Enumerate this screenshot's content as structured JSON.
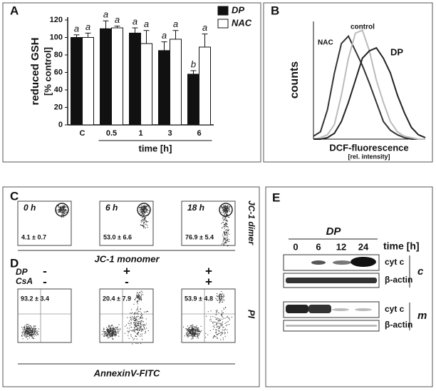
{
  "chart_data": [
    {
      "type": "bar",
      "panel": "A",
      "ylabel": [
        "reduced GSH",
        "[% control]"
      ],
      "xlabel": "time [h]",
      "categories": [
        "C",
        "0.5",
        "1",
        "3",
        "6"
      ],
      "series": [
        {
          "name": "DP",
          "color": "#111111",
          "values": [
            100,
            110,
            105,
            85,
            58
          ],
          "errors": [
            3,
            9,
            6,
            10,
            4
          ],
          "letters": [
            "a",
            "a",
            "a",
            "a",
            "b"
          ]
        },
        {
          "name": "NAC",
          "color": "#ffffff",
          "values": [
            100,
            111,
            93,
            98,
            89
          ],
          "errors": [
            5,
            2,
            15,
            10,
            15
          ],
          "letters": [
            "a",
            "a",
            "a",
            "a",
            "a"
          ]
        }
      ],
      "ylim": [
        0,
        120
      ],
      "yticks": [
        0,
        20,
        40,
        60,
        80,
        100,
        120
      ]
    },
    {
      "type": "line",
      "panel": "B",
      "ylabel": "counts",
      "xlabel": "DCF-fluorescence",
      "xlabel_sub": "[rel. intensity]",
      "x": [
        0,
        1,
        2,
        3,
        4,
        5,
        6,
        7,
        8,
        9,
        10,
        11,
        12,
        13,
        14,
        15,
        16
      ],
      "xlim": [
        0,
        16
      ],
      "ylim": [
        0,
        80
      ],
      "series": [
        {
          "name": "NAC",
          "color": "#333333",
          "values": [
            2,
            5,
            20,
            45,
            65,
            70,
            60,
            50,
            38,
            25,
            12,
            6,
            3,
            1,
            0,
            0,
            0
          ]
        },
        {
          "name": "control",
          "color": "#bbbbbb",
          "values": [
            0,
            1,
            3,
            10,
            30,
            55,
            72,
            74,
            60,
            40,
            25,
            12,
            5,
            2,
            1,
            0,
            0
          ]
        },
        {
          "name": "DP",
          "color": "#222222",
          "values": [
            0,
            0,
            1,
            4,
            12,
            25,
            40,
            55,
            60,
            62,
            55,
            45,
            30,
            18,
            8,
            3,
            1
          ]
        }
      ]
    }
  ],
  "panel_c": {
    "label": "C",
    "xlabel": "JC-1 monomer",
    "ylabel": "JC-1 dimer",
    "plots": [
      {
        "time": "0 h",
        "value": "4.1 ± 0.7"
      },
      {
        "time": "6 h",
        "value": "53.0 ± 6.6"
      },
      {
        "time": "18 h",
        "value": "76.9 ± 5.4"
      }
    ]
  },
  "panel_d": {
    "label": "D",
    "row_labels": [
      "DP",
      "CsA"
    ],
    "xlabel": "AnnexinV-FITC",
    "ylabel": "PI",
    "plots": [
      {
        "dp": "-",
        "csa": "-",
        "value": "93.2 ± 3.4"
      },
      {
        "dp": "+",
        "csa": "-",
        "value": "20.4 ± 7.9"
      },
      {
        "dp": "+",
        "csa": "+",
        "value": "53.9 ± 4.8"
      }
    ]
  },
  "panel_e": {
    "label": "E",
    "treatment": "DP",
    "time_label": "time [h]",
    "times": [
      "0",
      "6",
      "12",
      "24"
    ],
    "blots": [
      "cyt c",
      "β-actin",
      "cyt c",
      "β-actin"
    ],
    "fractions": [
      "c",
      "m"
    ]
  }
}
